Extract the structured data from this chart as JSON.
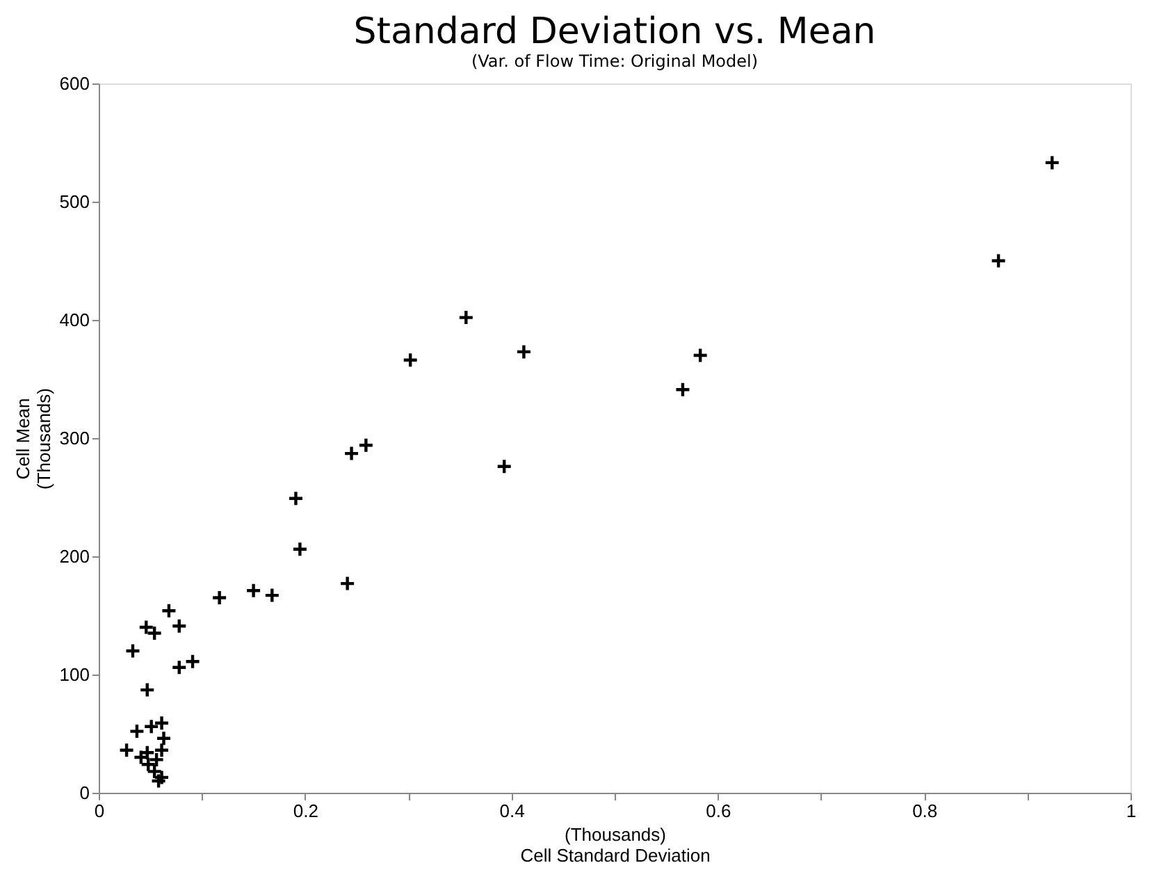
{
  "chart_data": {
    "type": "scatter",
    "title": "Standard Deviation vs. Mean",
    "subtitle": "(Var. of Flow Time: Original Model)",
    "xlabel": "(Thousands)\nCell Standard Deviation",
    "ylabel": "Cell Mean\n(Thousands)",
    "x": [
      0.924,
      0.872,
      0.356,
      0.302,
      0.412,
      0.583,
      0.566,
      0.245,
      0.259,
      0.393,
      0.241,
      0.191,
      0.195,
      0.117,
      0.15,
      0.168,
      0.068,
      0.078,
      0.046,
      0.054,
      0.033,
      0.078,
      0.091,
      0.047,
      0.037,
      0.061,
      0.051,
      0.027,
      0.063,
      0.041,
      0.048,
      0.061,
      0.054,
      0.058,
      0.061,
      0.047,
      0.056
    ],
    "values": [
      533,
      450,
      402,
      366,
      373,
      370,
      341,
      287,
      294,
      276,
      177,
      249,
      206,
      165,
      171,
      167,
      154,
      141,
      140,
      135,
      120,
      106,
      111,
      87,
      52,
      59,
      56,
      36,
      46,
      30,
      24,
      36,
      18,
      10,
      13,
      34,
      28
    ],
    "color": "#000000",
    "marker": "cross",
    "grid": false,
    "xlim": [
      0,
      1
    ],
    "ylim": [
      0,
      600
    ],
    "xticks": [
      0,
      {
        "value": 0.1,
        "label": null
      },
      0.2,
      {
        "value": 0.3,
        "label": null
      },
      0.4,
      {
        "value": 0.5,
        "label": null
      },
      0.6,
      {
        "value": 0.7,
        "label": null
      },
      0.8,
      {
        "value": 0.9,
        "label": null
      },
      1
    ],
    "yticks": [
      0,
      100,
      200,
      300,
      400,
      500,
      600
    ]
  }
}
